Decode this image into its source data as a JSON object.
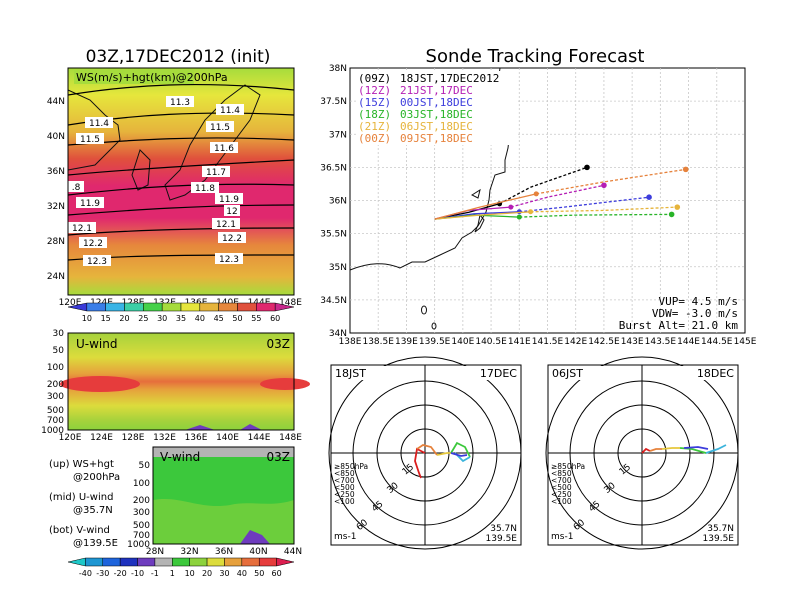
{
  "left_title": "03Z,17DEC2012 (init)",
  "right_title": "Sonde Tracking Forecast",
  "map_panel": {
    "label": "WS(m/s)+hgt(km)@200hPa",
    "lat_ticks": [
      "44N",
      "40N",
      "36N",
      "32N",
      "28N",
      "24N"
    ],
    "lon_ticks": [
      "120E",
      "124E",
      "128E",
      "132E",
      "136E",
      "140E",
      "144E",
      "148E"
    ],
    "contour_labels": [
      "11.3",
      "11.4",
      "11.4",
      "11.5",
      "11.5",
      "11.6",
      "11.7",
      "11.8",
      ".8",
      "11.9",
      "11.9",
      "12",
      "12.1",
      "12.1",
      "12.2",
      "12.2",
      "12.3",
      "12.3"
    ]
  },
  "ws_colorbar": {
    "labels": [
      "10",
      "15",
      "20",
      "25",
      "30",
      "35",
      "40",
      "45",
      "50",
      "55",
      "60"
    ],
    "colors": [
      "#3a3ad8",
      "#3a7ee8",
      "#39b4e6",
      "#3ccfa6",
      "#45d14a",
      "#a6dc3c",
      "#e6e63c",
      "#e6b43c",
      "#e6873c",
      "#e0503c",
      "#e0286e",
      "#c8288c"
    ]
  },
  "uwind_panel": {
    "label": "U-wind",
    "time": "03Z",
    "p_ticks": [
      "30",
      "50",
      "100",
      "200",
      "300",
      "500",
      "700",
      "1000"
    ],
    "lon_ticks": [
      "120E",
      "124E",
      "128E",
      "132E",
      "136E",
      "140E",
      "144E",
      "148E"
    ]
  },
  "vwind_panel": {
    "label": "V-wind",
    "time": "03Z",
    "p_ticks": [
      "50",
      "100",
      "200",
      "300",
      "500",
      "700",
      "1000"
    ],
    "lat_ticks": [
      "28N",
      "32N",
      "36N",
      "40N",
      "44N"
    ]
  },
  "legend_notes": [
    "(up) WS+hgt",
    "@200hPa",
    "(mid) U-wind",
    "@35.7N",
    "(bot) V-wind",
    "@139.5E"
  ],
  "wind_colorbar": {
    "labels": [
      "-40",
      "-30",
      "-20",
      "-10",
      "-1",
      "1",
      "10",
      "20",
      "30",
      "40",
      "50",
      "60"
    ],
    "colors": [
      "#1ec8c8",
      "#1e96d2",
      "#1e64dc",
      "#1e32be",
      "#6e3cbe",
      "#b4b4b4",
      "#3cc83c",
      "#8cd23c",
      "#dcdc3c",
      "#e6a03c",
      "#e66e3c",
      "#e63c3c",
      "#dc1e50"
    ]
  },
  "track_panel": {
    "lat_ticks": [
      "38N",
      "37.5N",
      "37N",
      "36.5N",
      "36N",
      "35.5N",
      "35N",
      "34.5N",
      "34N"
    ],
    "lon_ticks": [
      "138E",
      "138.5E",
      "139E",
      "139.5E",
      "140E",
      "140.5E",
      "141E",
      "141.5E",
      "142E",
      "142.5E",
      "143E",
      "143.5E",
      "144E",
      "144.5E",
      "145E"
    ],
    "legend": [
      {
        "code": "(09Z)",
        "time": "18JST,17DEC2012",
        "color": "#000000"
      },
      {
        "code": "(12Z)",
        "time": "21JST,17DEC",
        "color": "#b41eb4"
      },
      {
        "code": "(15Z)",
        "time": "00JST,18DEC",
        "color": "#3c3cdc"
      },
      {
        "code": "(18Z)",
        "time": "03JST,18DEC",
        "color": "#28b428"
      },
      {
        "code": "(21Z)",
        "time": "06JST,18DEC",
        "color": "#e6b43c"
      },
      {
        "code": "(00Z)",
        "time": "09JST,18DEC",
        "color": "#e6823c"
      }
    ],
    "params": [
      "VUP= 4.5 m/s",
      "VDW= -3.0 m/s",
      "Burst Alt= 21.0 km"
    ],
    "tracks": [
      {
        "color": "#000000",
        "points": [
          [
            139.5,
            35.72
          ],
          [
            140.1,
            35.82
          ],
          [
            140.65,
            35.95
          ],
          [
            141.2,
            36.2
          ],
          [
            141.7,
            36.35
          ],
          [
            142.2,
            36.5
          ]
        ]
      },
      {
        "color": "#b41eb4",
        "points": [
          [
            139.5,
            35.72
          ],
          [
            140.1,
            35.85
          ],
          [
            140.85,
            35.9
          ],
          [
            141.5,
            36.05
          ],
          [
            142.5,
            36.23
          ]
        ]
      },
      {
        "color": "#3c3cdc",
        "points": [
          [
            139.5,
            35.72
          ],
          [
            140.2,
            35.8
          ],
          [
            141.0,
            35.83
          ],
          [
            141.8,
            35.9
          ],
          [
            143.3,
            36.05
          ]
        ]
      },
      {
        "color": "#28b428",
        "points": [
          [
            139.5,
            35.72
          ],
          [
            140.2,
            35.78
          ],
          [
            141.0,
            35.75
          ],
          [
            142.0,
            35.78
          ],
          [
            143.7,
            35.79
          ]
        ]
      },
      {
        "color": "#e6b43c",
        "points": [
          [
            139.5,
            35.72
          ],
          [
            140.3,
            35.78
          ],
          [
            141.2,
            35.83
          ],
          [
            142.5,
            35.85
          ],
          [
            143.8,
            35.9
          ]
        ]
      },
      {
        "color": "#e6823c",
        "points": [
          [
            139.5,
            35.72
          ],
          [
            140.3,
            35.9
          ],
          [
            141.3,
            36.1
          ],
          [
            142.5,
            36.28
          ],
          [
            143.95,
            36.47
          ]
        ]
      }
    ]
  },
  "hodo_left": {
    "time": "18JST",
    "date": "17DEC",
    "ring_labels": [
      "15",
      "30",
      "45",
      "60"
    ],
    "levels": [
      "≥850hPa",
      "<850",
      "<700",
      "<500",
      "<250",
      "<100"
    ],
    "level_colors": [
      "#dc1e1e",
      "#e6823c",
      "#e6c83c",
      "#3cc83c",
      "#3cb4dc",
      "#3c3cdc"
    ],
    "unit": "ms-1",
    "lat": "35.7N",
    "lon": "139.5E"
  },
  "hodo_right": {
    "time": "06JST",
    "date": "18DEC",
    "ring_labels": [
      "15",
      "30",
      "45",
      "60"
    ],
    "levels": [
      "≥850hPa",
      "<850",
      "<700",
      "<500",
      "<250",
      "<100"
    ],
    "level_colors": [
      "#dc1e1e",
      "#e6823c",
      "#e6c83c",
      "#3cc83c",
      "#3cb4dc",
      "#3c3cdc"
    ],
    "unit": "ms-1",
    "lat": "35.7N",
    "lon": "139.5E"
  }
}
